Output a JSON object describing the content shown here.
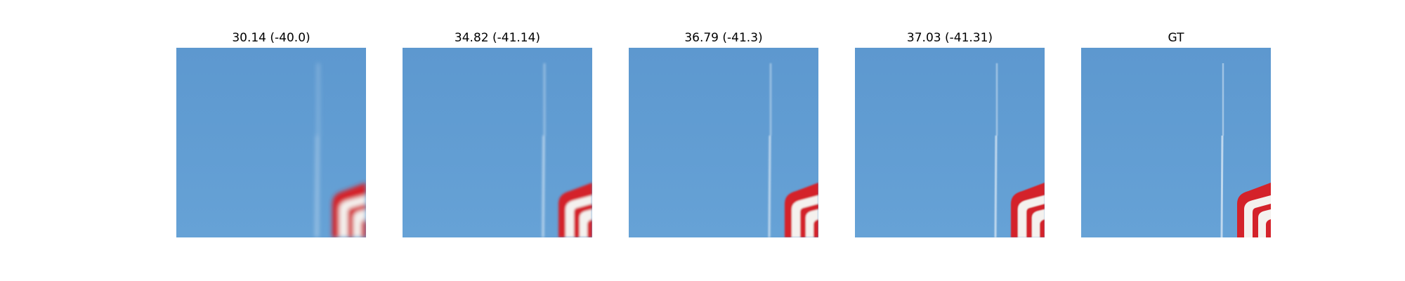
{
  "panels": [
    {
      "title": "30.14 (-40.0)",
      "blur": 3.2
    },
    {
      "title": "34.82 (-41.14)",
      "blur": 1.6
    },
    {
      "title": "36.79 (-41.3)",
      "blur": 1.1
    },
    {
      "title": "37.03 (-41.31)",
      "blur": 0.9
    },
    {
      "title": "GT",
      "blur": 0.2
    }
  ],
  "colors": {
    "sky_top": "#5d98cf",
    "sky_bottom": "#66a2d6",
    "streak": "#d6e6f4",
    "sign_red": "#d4202a",
    "sign_white": "#f4f1ee"
  }
}
